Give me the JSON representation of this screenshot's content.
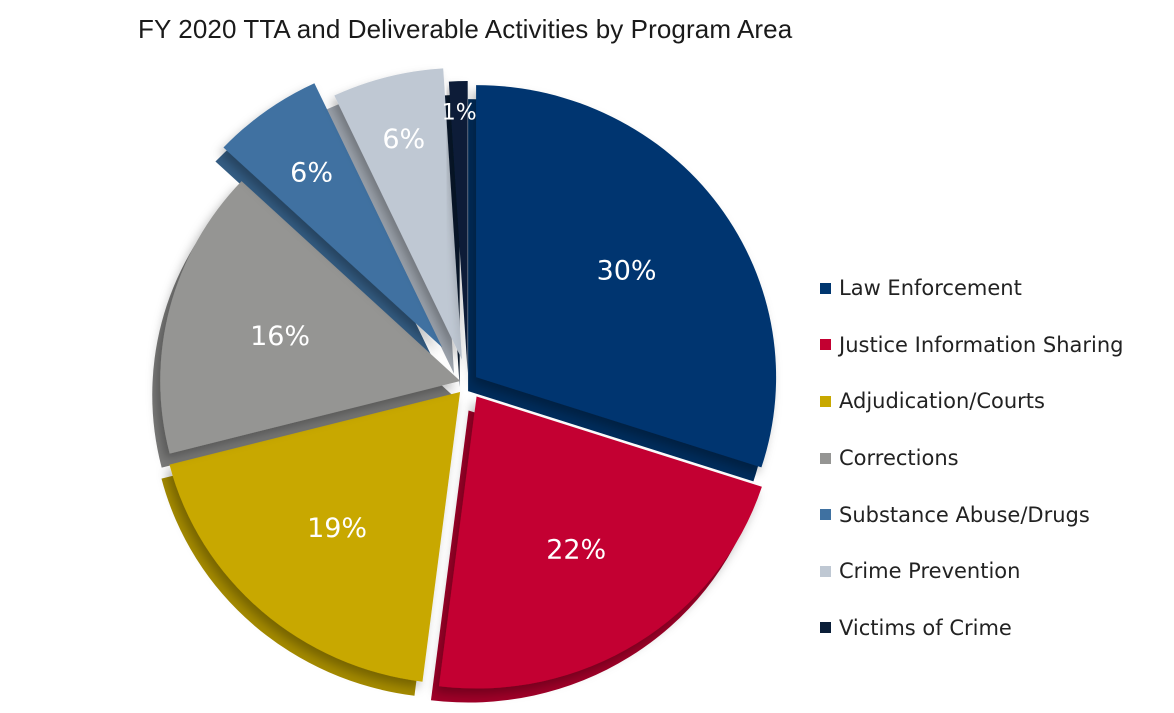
{
  "chart_data": {
    "type": "pie",
    "title": "FY 2020 TTA and Deliverable Activities by Program Area",
    "slices": [
      {
        "name": "Law Enforcement",
        "value": 30,
        "label": "30%",
        "color": "#00366f"
      },
      {
        "name": "Justice Information Sharing",
        "value": 22,
        "label": "22%",
        "color": "#c30031"
      },
      {
        "name": "Adjudication/Courts",
        "value": 19,
        "label": "19%",
        "color": "#c8a800"
      },
      {
        "name": "Corrections",
        "value": 16,
        "label": "16%",
        "color": "#959593"
      },
      {
        "name": "Substance Abuse/Drugs",
        "value": 6,
        "label": "6%",
        "color": "#3f71a1"
      },
      {
        "name": "Crime Prevention",
        "value": 6,
        "label": "6%",
        "color": "#bfc8d3"
      },
      {
        "name": "Victims of Crime",
        "value": 1,
        "label": "1%",
        "color": "#0a1e38"
      }
    ],
    "legend_position": "right",
    "exploded": true,
    "style": "3d"
  }
}
